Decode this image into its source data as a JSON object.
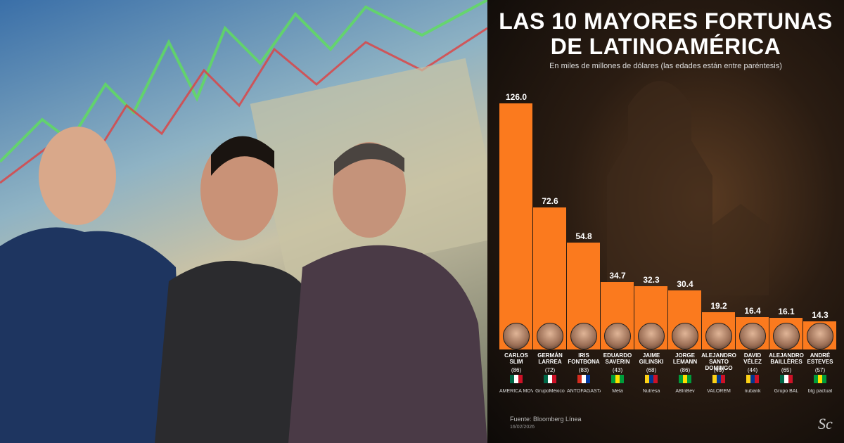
{
  "chart_data": {
    "type": "bar",
    "title": [
      "LAS 10 MAYORES FORTUNAS",
      "DE LATINOAMÉRICA"
    ],
    "subtitle": "En miles de millones de dólares (las edades están entre paréntesis)",
    "categories": [
      "CARLOS SLIM",
      "GERMÁN LARREA",
      "IRIS FONTBONA",
      "EDUARDO SAVERIN",
      "JAIME GILINSKI",
      "JORGE LEMANN",
      "ALEJANDRO SANTO DOMINGO",
      "DAVID VÉLEZ",
      "ALEJANDRO BAILLÈRES",
      "ANDRÉ ESTEVES"
    ],
    "ages": [
      "(86)",
      "(72)",
      "(83)",
      "(43)",
      "(68)",
      "(86)",
      "(49)",
      "(44)",
      "(65)",
      "(57)"
    ],
    "logos": [
      "AMÉRICA MÓVIL",
      "GrupoMéxico",
      "ANTOFAGASTA MINERALS",
      "Meta",
      "Nutresa",
      "ABInBev",
      "VALOREM",
      "nubank",
      "Grupo BAL",
      "btg pactual"
    ],
    "values": [
      126.0,
      72.6,
      54.8,
      34.7,
      32.3,
      30.4,
      19.2,
      16.4,
      16.1,
      14.3
    ],
    "value_labels": [
      "126.0",
      "72.6",
      "54.8",
      "34.7",
      "32.3",
      "30.4",
      "19.2",
      "16.4",
      "16.1",
      "14.3"
    ],
    "color": "#fb7a1e",
    "source": "Fuente: Bloomberg Línea",
    "date": "16/02/2026"
  }
}
